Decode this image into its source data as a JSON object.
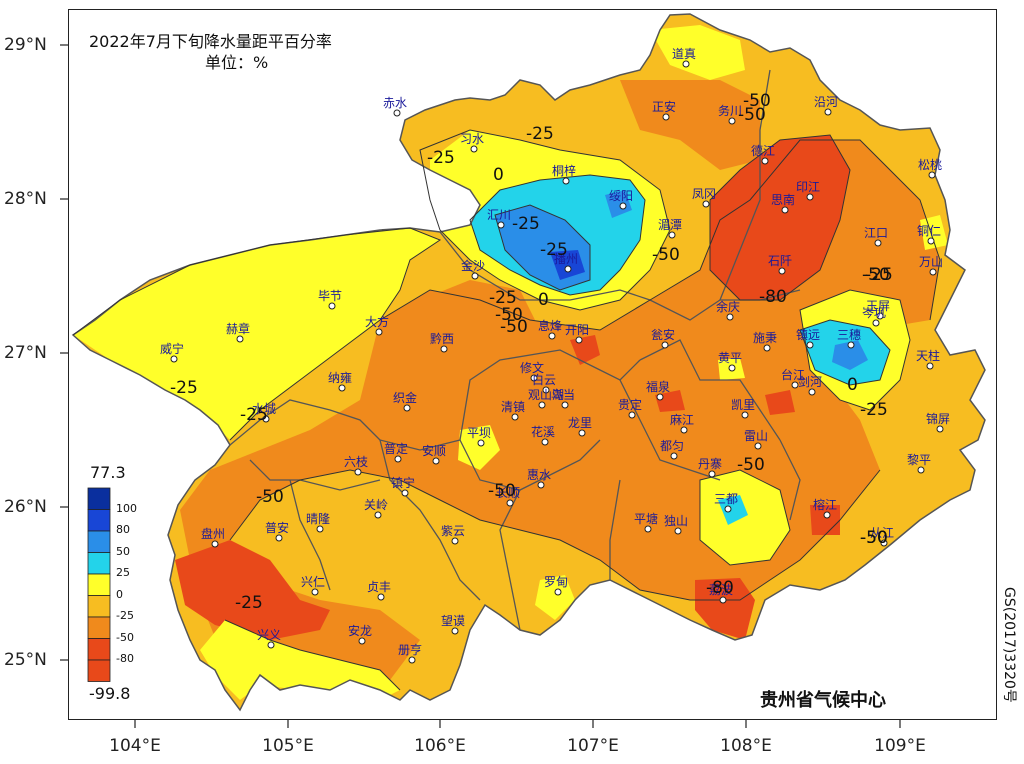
{
  "title": "2022年7月下旬降水量距平百分率",
  "unit": "单位：%",
  "footer": "贵州省气候中心",
  "approval": "GS(2017)3320号",
  "lat_ticks": [
    "29°N",
    "28°N",
    "27°N",
    "26°N",
    "25°N"
  ],
  "lon_ticks": [
    "104°E",
    "105°E",
    "106°E",
    "107°E",
    "108°E",
    "109°E"
  ],
  "legend": {
    "max": "77.3",
    "min": "-99.8",
    "levels": [
      {
        "label": "100",
        "color": "#0a2f9e"
      },
      {
        "label": "80",
        "color": "#1846d6"
      },
      {
        "label": "50",
        "color": "#2a8ee8"
      },
      {
        "label": "25",
        "color": "#23d3ea"
      },
      {
        "label": "0",
        "color": "#ffff2a"
      },
      {
        "label": "-25",
        "color": "#f7bd21"
      },
      {
        "label": "-50",
        "color": "#f08a1c"
      },
      {
        "label": "-80",
        "color": "#e8491a"
      }
    ]
  },
  "colors": {
    "cold_lo": "#f08a1c",
    "cold_mid": "#f7bd21",
    "cold_hi": "#ffff2a",
    "wet_lo": "#23d3ea",
    "wet_mid": "#2a8ee8",
    "wet_hi": "#1846d6",
    "very_dry": "#e8491a"
  },
  "contour_labels": [
    "-25",
    "0",
    "-25",
    "-25",
    "-50",
    "-25",
    "0",
    "-25",
    "-50",
    "-50",
    "-80",
    "-50",
    "-25",
    "0",
    "-25",
    "-50",
    "-50",
    "-50",
    "-80",
    "-50",
    "-25",
    "-25",
    "-25",
    "-50",
    "-50",
    "-50"
  ],
  "cities": [
    "道真",
    "正安",
    "务川",
    "沿河",
    "赤水",
    "习水",
    "桐梓",
    "绥阳",
    "凤冈",
    "德江",
    "印江",
    "思南",
    "松桃",
    "江口",
    "铜仁",
    "万山",
    "汇川",
    "播州",
    "湄潭",
    "石阡",
    "金沙",
    "毕节",
    "大方",
    "息烽",
    "开阳",
    "余庆",
    "瓮安",
    "镇远",
    "三穗",
    "岑巩",
    "玉屏",
    "天柱",
    "赫章",
    "黔西",
    "修文",
    "白云",
    "乌当",
    "黄平",
    "施秉",
    "剑河",
    "台江",
    "锦屏",
    "威宁",
    "纳雍",
    "织金",
    "清镇",
    "观山湖",
    "贵定",
    "福泉",
    "凯里",
    "麻江",
    "黎平",
    "水城",
    "平坝",
    "花溪",
    "龙里",
    "雷山",
    "六枝",
    "普定",
    "安顺",
    "惠水",
    "丹寨",
    "都匀",
    "榕江",
    "镇宁",
    "关岭",
    "长顺",
    "三都",
    "从江",
    "盘州",
    "普安",
    "晴隆",
    "紫云",
    "平塘",
    "独山",
    "兴仁",
    "贞丰",
    "罗甸",
    "荔波",
    "兴义",
    "安龙",
    "望谟",
    "册亨"
  ]
}
